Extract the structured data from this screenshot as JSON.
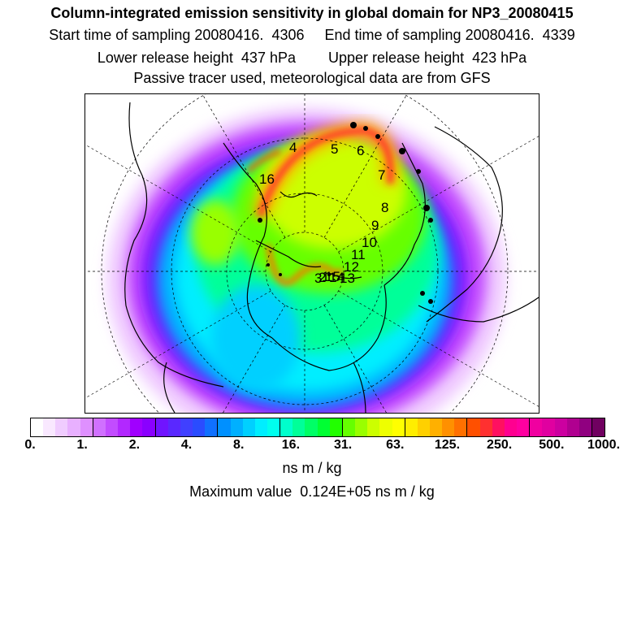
{
  "header": {
    "title": "Column-integrated emission sensitivity in global domain for NP3_20080415",
    "sampling_line": "Start time of sampling 20080416.  4306     End time of sampling 20080416.  4339",
    "release_line": "Lower release height  437 hPa        Upper release height  423 hPa",
    "tracer_line": "Passive tracer used, meteorological data are from GFS"
  },
  "map": {
    "projection": "north-polar-stereographic",
    "trajectory_labels": [
      "1",
      "2",
      "3",
      "4",
      "5",
      "6",
      "7",
      "8",
      "9",
      "10",
      "11",
      "12",
      "13",
      "14",
      "15",
      "16"
    ]
  },
  "colorbar": {
    "colors": [
      "#ffffff",
      "#f9e8ff",
      "#f0ccff",
      "#e8b0ff",
      "#df90ff",
      "#d070ff",
      "#c24cff",
      "#b228ff",
      "#a000ff",
      "#8a00ff",
      "#7014ff",
      "#5a28ff",
      "#4040ff",
      "#2a4cff",
      "#1070ff",
      "#0090ff",
      "#00b0ff",
      "#00d0ff",
      "#00eeff",
      "#00ffee",
      "#00ffcc",
      "#00ff99",
      "#00ff66",
      "#00ff33",
      "#22ff00",
      "#66ff00",
      "#99ff00",
      "#ccff00",
      "#eeff00",
      "#ffff00",
      "#ffee00",
      "#ffd000",
      "#ffb000",
      "#ff9000",
      "#ff7000",
      "#ff5000",
      "#ff3030",
      "#ff1060",
      "#ff0090",
      "#ff00a0",
      "#f000a0",
      "#e000a0",
      "#cc00a0",
      "#b00090",
      "#900080",
      "#700060"
    ],
    "major_every": 5,
    "tick_labels": [
      "0.",
      "1.",
      "2.",
      "4.",
      "8.",
      "16.",
      "31.",
      "63.",
      "125.",
      "250.",
      "500.",
      "1000."
    ],
    "units": "ns m / kg"
  },
  "max_value": "Maximum value  0.124E+05 ns m / kg"
}
